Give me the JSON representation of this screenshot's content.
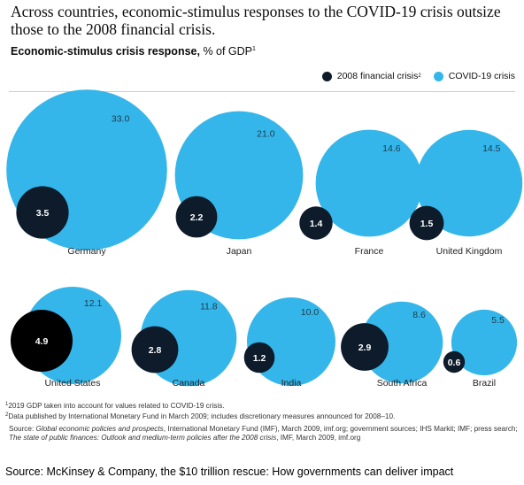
{
  "headline": "Across countries, economic-stimulus responses to the COVID-19 crisis outsize those to the 2008 financial crisis.",
  "subtitle": {
    "bold": "Economic-stimulus crisis response,",
    "rest": " % of GDP",
    "sup": "1"
  },
  "colors": {
    "crisis_2008": "#0d1b2a",
    "crisis_2008_highlight": "#000000",
    "covid": "#35b6ea"
  },
  "chart_data": {
    "type": "bubble",
    "title": "Economic-stimulus crisis response, % of GDP",
    "legend": [
      {
        "name": "2008 financial crisis",
        "sup": "2"
      },
      {
        "name": "COVID-19 crisis",
        "sup": ""
      }
    ],
    "legend_position": "top-right",
    "categories": [
      "Germany",
      "Japan",
      "France",
      "United Kingdom",
      "United States",
      "Canada",
      "India",
      "South Africa",
      "Brazil"
    ],
    "series": [
      {
        "name": "2008 financial crisis",
        "values": [
          3.5,
          2.2,
          1.4,
          1.5,
          4.9,
          2.8,
          1.2,
          2.9,
          0.6
        ]
      },
      {
        "name": "COVID-19 crisis",
        "values": [
          33.0,
          21.0,
          14.6,
          14.5,
          12.1,
          11.8,
          10.0,
          8.6,
          5.5
        ]
      }
    ]
  },
  "footnotes": [
    {
      "sup": "1",
      "text": "2019 GDP taken into account for values related to COVID-19 crisis."
    },
    {
      "sup": "2",
      "text": "Data published by International Monetary Fund in March 2009; includes discretionary measures announced for 2008–10."
    }
  ],
  "source": {
    "prefix": "Source: ",
    "italic1": "Global economic policies and prospects",
    "mid": ", International Monetary Fund (IMF), March 2009, imf.org; government sources; IHS Markit; IMF; press search; ",
    "italic2": "The state of public finances: Outlook and medium-term policies after the 2008 crisis",
    "end": ", IMF, March 2009, imf.org"
  },
  "source_line": "Source:  McKinsey & Company, the $10 trillion rescue: How governments can deliver impact"
}
